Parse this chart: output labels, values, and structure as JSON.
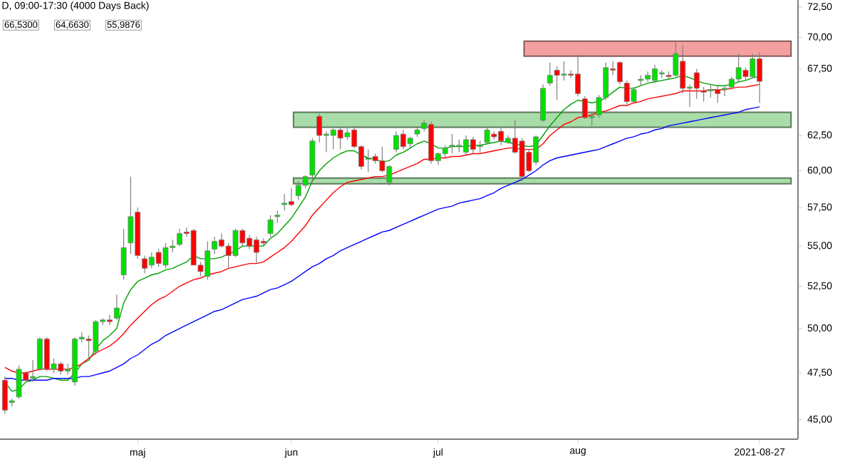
{
  "chart_data": {
    "type": "candlestick",
    "title": "D, 09:00-17:30 (4000 Days Back)",
    "categories": [
      null,
      null,
      null,
      null,
      null,
      null,
      null,
      null,
      null,
      null,
      null,
      null,
      null,
      null,
      null,
      null,
      null,
      null,
      null,
      "maj",
      null,
      null,
      null,
      null,
      null,
      null,
      null,
      null,
      null,
      null,
      null,
      null,
      null,
      null,
      null,
      null,
      null,
      null,
      null,
      null,
      null,
      "jun",
      null,
      null,
      null,
      null,
      null,
      null,
      null,
      null,
      null,
      null,
      null,
      null,
      null,
      null,
      null,
      null,
      null,
      null,
      null,
      null,
      "jul",
      null,
      null,
      null,
      null,
      null,
      null,
      null,
      null,
      null,
      null,
      null,
      null,
      null,
      null,
      null,
      null,
      null,
      null,
      null,
      "aug",
      null,
      null,
      null,
      null,
      null,
      null,
      null,
      null,
      null,
      null,
      null,
      null,
      null,
      null,
      null,
      null,
      null,
      null,
      null,
      null,
      null,
      null,
      null,
      null,
      null,
      "2021-08-27"
    ],
    "ohlc": [
      [
        47.1,
        47.3,
        45.3,
        45.5
      ],
      [
        45.9,
        46.1,
        45.7,
        46.0
      ],
      [
        46.2,
        47.9,
        46.1,
        47.7
      ],
      [
        47.5,
        47.6,
        47.0,
        47.1
      ],
      [
        47.2,
        48.2,
        47.0,
        47.3
      ],
      [
        47.7,
        49.5,
        47.6,
        49.4
      ],
      [
        49.4,
        49.5,
        47.6,
        47.7
      ],
      [
        47.7,
        48.3,
        47.5,
        48.0
      ],
      [
        48.0,
        48.1,
        47.4,
        47.6
      ],
      [
        47.6,
        48.0,
        47.4,
        47.7
      ],
      [
        47.0,
        49.5,
        46.8,
        49.4
      ],
      [
        49.4,
        49.8,
        49.2,
        49.5
      ],
      [
        49.4,
        49.6,
        48.3,
        49.3
      ],
      [
        48.7,
        50.5,
        48.5,
        50.4
      ],
      [
        50.4,
        50.6,
        50.2,
        50.5
      ],
      [
        50.5,
        50.8,
        50.2,
        50.4
      ],
      [
        50.6,
        52.0,
        50.5,
        51.2
      ],
      [
        53.2,
        56.1,
        52.9,
        54.9
      ],
      [
        55.2,
        59.6,
        54.5,
        56.9
      ],
      [
        57.2,
        57.5,
        54.2,
        54.4
      ],
      [
        54.2,
        54.4,
        53.3,
        53.6
      ],
      [
        53.8,
        54.6,
        53.6,
        54.3
      ],
      [
        54.6,
        54.8,
        53.7,
        53.9
      ],
      [
        53.8,
        55.2,
        53.6,
        54.9
      ],
      [
        54.9,
        55.4,
        54.6,
        55.0
      ],
      [
        55.1,
        56.1,
        55.0,
        55.8
      ],
      [
        55.9,
        56.2,
        55.6,
        55.8
      ],
      [
        56.0,
        56.1,
        53.8,
        53.8
      ],
      [
        53.8,
        54.0,
        53.1,
        53.4
      ],
      [
        53.1,
        55.3,
        52.9,
        54.7
      ],
      [
        54.8,
        55.6,
        54.5,
        55.3
      ],
      [
        55.4,
        55.8,
        54.9,
        55.0
      ],
      [
        55.0,
        55.2,
        53.6,
        54.4
      ],
      [
        54.4,
        56.1,
        54.3,
        56.0
      ],
      [
        56.0,
        56.1,
        55.0,
        55.2
      ],
      [
        55.5,
        55.7,
        54.8,
        55.0
      ],
      [
        55.4,
        55.6,
        53.9,
        54.6
      ],
      [
        55.3,
        55.5,
        55.0,
        55.2
      ],
      [
        55.8,
        57.0,
        55.6,
        56.7
      ],
      [
        56.9,
        57.3,
        56.5,
        57.0
      ],
      [
        57.7,
        58.4,
        57.3,
        57.8
      ],
      [
        57.9,
        58.8,
        57.6,
        57.7
      ],
      [
        58.3,
        59.3,
        58.0,
        59.0
      ],
      [
        59.0,
        59.7,
        58.8,
        59.6
      ],
      [
        59.7,
        62.3,
        59.3,
        62.1
      ],
      [
        63.9,
        64.1,
        62.0,
        62.5
      ],
      [
        62.5,
        62.8,
        61.3,
        62.6
      ],
      [
        62.5,
        63.0,
        61.5,
        62.9
      ],
      [
        62.9,
        63.1,
        61.5,
        62.3
      ],
      [
        62.4,
        63.0,
        62.2,
        62.7
      ],
      [
        62.9,
        63.2,
        61.6,
        61.7
      ],
      [
        61.7,
        61.8,
        60.1,
        60.3
      ],
      [
        60.8,
        61.5,
        59.9,
        60.9
      ],
      [
        61.0,
        61.2,
        60.5,
        60.7
      ],
      [
        60.7,
        61.7,
        59.9,
        60.0
      ],
      [
        59.2,
        60.4,
        59.0,
        60.3
      ],
      [
        61.5,
        62.8,
        61.3,
        62.5
      ],
      [
        62.6,
        62.9,
        61.5,
        61.7
      ],
      [
        61.9,
        62.4,
        61.6,
        62.3
      ],
      [
        62.6,
        63.1,
        62.4,
        62.9
      ],
      [
        63.0,
        63.6,
        62.8,
        63.4
      ],
      [
        63.3,
        63.5,
        60.5,
        60.7
      ],
      [
        60.7,
        61.3,
        60.4,
        61.2
      ],
      [
        61.2,
        61.8,
        60.9,
        61.6
      ],
      [
        61.7,
        62.6,
        61.2,
        61.8
      ],
      [
        61.7,
        62.2,
        61.3,
        61.8
      ],
      [
        61.3,
        62.5,
        61.1,
        62.2
      ],
      [
        62.2,
        62.4,
        61.2,
        61.5
      ],
      [
        61.7,
        62.1,
        61.2,
        61.8
      ],
      [
        62.0,
        63.1,
        61.9,
        62.9
      ],
      [
        62.6,
        62.8,
        62.2,
        62.4
      ],
      [
        62.8,
        63.0,
        61.8,
        62.1
      ],
      [
        62.0,
        62.5,
        61.9,
        62.3
      ],
      [
        62.3,
        63.6,
        61.2,
        61.3
      ],
      [
        62.1,
        62.3,
        59.3,
        59.6
      ],
      [
        61.3,
        61.5,
        59.9,
        60.0
      ],
      [
        60.6,
        62.5,
        60.4,
        62.4
      ],
      [
        63.6,
        66.3,
        63.5,
        66.0
      ],
      [
        66.4,
        68.0,
        66.2,
        67.0
      ],
      [
        67.4,
        67.7,
        65.1,
        67.0
      ],
      [
        67.0,
        68.1,
        66.6,
        67.1
      ],
      [
        67.1,
        67.4,
        66.8,
        67.0
      ],
      [
        67.1,
        68.6,
        65.4,
        65.6
      ],
      [
        65.2,
        65.4,
        63.7,
        63.8
      ],
      [
        63.8,
        64.2,
        63.2,
        63.9
      ],
      [
        64.0,
        65.5,
        63.8,
        65.3
      ],
      [
        65.3,
        68.0,
        65.1,
        67.6
      ],
      [
        67.5,
        68.1,
        67.0,
        67.4
      ],
      [
        68.0,
        68.1,
        66.3,
        66.5
      ],
      [
        66.4,
        66.6,
        64.8,
        65.0
      ],
      [
        65.0,
        66.1,
        64.9,
        65.9
      ],
      [
        66.6,
        67.0,
        66.2,
        66.7
      ],
      [
        66.7,
        67.3,
        66.5,
        67.0
      ],
      [
        66.6,
        67.8,
        66.4,
        67.5
      ],
      [
        67.1,
        67.4,
        66.8,
        67.2
      ],
      [
        67.0,
        67.3,
        66.7,
        66.9
      ],
      [
        67.0,
        69.7,
        66.9,
        68.7
      ],
      [
        68.1,
        69.4,
        65.6,
        66.0
      ],
      [
        66.0,
        66.3,
        64.6,
        66.1
      ],
      [
        67.2,
        67.5,
        65.2,
        66.0
      ],
      [
        65.8,
        66.1,
        65.0,
        65.7
      ],
      [
        65.8,
        66.3,
        65.3,
        65.9
      ],
      [
        65.9,
        66.2,
        64.9,
        65.6
      ],
      [
        65.9,
        66.2,
        65.4,
        66.0
      ],
      [
        66.1,
        66.9,
        65.9,
        66.7
      ],
      [
        66.7,
        68.7,
        66.5,
        67.6
      ],
      [
        67.4,
        67.6,
        66.6,
        66.9
      ],
      [
        66.9,
        68.7,
        66.8,
        68.3
      ],
      [
        68.3,
        68.8,
        64.9,
        66.53
      ]
    ],
    "colors": [
      "#ff0000",
      "#00e000",
      "#00e000",
      "#ff0000",
      "#00e000",
      "#00e000",
      "#ff0000",
      "#00e000",
      "#ff0000",
      "#00e000",
      "#00e000",
      "#00e000",
      "#ff0000",
      "#00e000",
      "#00e000",
      "#ff0000",
      "#00e000",
      "#00e000",
      "#00e000",
      "#ff0000",
      "#ff0000",
      "#00e000",
      "#ff0000",
      "#00e000",
      "#00e000",
      "#00e000",
      "#ff0000",
      "#ff0000",
      "#ff0000",
      "#00e000",
      "#00e000",
      "#ff0000",
      "#ff0000",
      "#00e000",
      "#ff0000",
      "#ff0000",
      "#ff0000",
      "#ff0000",
      "#00e000",
      "#00e000",
      "#00e000",
      "#ff0000",
      "#00e000",
      "#00e000",
      "#00e000",
      "#ff0000",
      "#00e000",
      "#00e000",
      "#ff0000",
      "#00e000",
      "#ff0000",
      "#ff0000",
      "#00e000",
      "#ff0000",
      "#ff0000",
      "#00e000",
      "#00e000",
      "#ff0000",
      "#00e000",
      "#00e000",
      "#00e000",
      "#ff0000",
      "#00e000",
      "#00e000",
      "#00e000",
      "#00e000",
      "#00e000",
      "#ff0000",
      "#00e000",
      "#00e000",
      "#ff0000",
      "#ff0000",
      "#00e000",
      "#ff0000",
      "#ff0000",
      "#ff0000",
      "#00e000",
      "#00e000",
      "#00e000",
      "#ff0000",
      "#00e000",
      "#ff0000",
      "#ff0000",
      "#ff0000",
      "#00e000",
      "#00e000",
      "#00e000",
      "#ff0000",
      "#ff0000",
      "#ff0000",
      "#00e000",
      "#00e000",
      "#00e000",
      "#00e000",
      "#00e000",
      "#ff0000",
      "#00e000",
      "#ff0000",
      "#00e000",
      "#ff0000",
      "#ff0000",
      "#00e000",
      "#ff0000",
      "#00e000",
      "#00e000",
      "#00e000",
      "#ff0000",
      "#00e000",
      "#ff0000"
    ],
    "series": [
      {
        "type": "line",
        "color": "#00a000",
        "values": [
          47.0,
          46.5,
          46.6,
          47.0,
          47.1,
          47.3,
          47.3,
          47.2,
          47.1,
          47.1,
          47.5,
          48.0,
          48.2,
          48.8,
          49.3,
          49.6,
          50.0,
          51.5,
          52.3,
          52.8,
          53.0,
          53.2,
          53.3,
          53.5,
          53.6,
          53.8,
          54.0,
          54.4,
          54.2,
          54.2,
          54.2,
          54.3,
          54.5,
          54.7,
          55.0,
          55.0,
          55.0,
          55.0,
          55.5,
          55.8,
          56.3,
          56.8,
          57.5,
          58.2,
          59.3,
          60.0,
          60.5,
          60.9,
          61.2,
          61.4,
          61.4,
          61.1,
          60.9,
          60.8,
          60.6,
          60.7,
          61.1,
          61.3,
          61.6,
          61.9,
          62.1,
          61.9,
          61.6,
          61.6,
          61.7,
          61.7,
          61.7,
          61.8,
          61.8,
          61.9,
          62.0,
          62.1,
          62.0,
          61.9,
          61.8,
          61.7,
          61.8,
          62.5,
          63.2,
          63.8,
          64.4,
          64.8,
          65.1,
          65.0,
          64.9,
          65.0,
          65.3,
          65.7,
          66.1,
          66.0,
          66.0,
          66.2,
          66.4,
          66.5,
          66.6,
          66.7,
          66.8,
          67.0,
          66.8,
          66.6,
          66.4,
          66.3,
          66.2,
          66.2,
          66.3,
          66.5,
          66.6,
          66.8,
          66.9
        ]
      },
      {
        "type": "line",
        "color": "#ff0000",
        "values": [
          47.8,
          47.6,
          47.5,
          47.5,
          47.6,
          47.7,
          47.7,
          47.7,
          47.7,
          47.7,
          47.8,
          48.0,
          48.3,
          48.6,
          48.8,
          49.0,
          49.3,
          49.7,
          50.2,
          50.6,
          51.0,
          51.4,
          51.7,
          51.9,
          52.2,
          52.5,
          52.7,
          52.9,
          53.0,
          53.2,
          53.3,
          53.4,
          53.6,
          53.7,
          53.8,
          53.9,
          53.9,
          54.0,
          54.3,
          54.6,
          54.9,
          55.3,
          55.8,
          56.3,
          57.0,
          57.5,
          58.0,
          58.5,
          58.9,
          59.2,
          59.3,
          59.4,
          59.5,
          59.6,
          59.6,
          59.7,
          59.9,
          60.1,
          60.3,
          60.5,
          60.8,
          60.8,
          60.9,
          60.9,
          61.0,
          61.0,
          61.1,
          61.2,
          61.2,
          61.3,
          61.4,
          61.5,
          61.6,
          61.6,
          61.5,
          61.5,
          61.5,
          61.9,
          62.5,
          62.9,
          63.3,
          63.5,
          63.8,
          63.9,
          64.0,
          64.2,
          64.3,
          64.5,
          64.7,
          64.7,
          64.9,
          65.0,
          65.2,
          65.3,
          65.4,
          65.5,
          65.6,
          65.8,
          65.8,
          65.8,
          65.8,
          65.9,
          65.9,
          65.9,
          66.0,
          66.1,
          66.1,
          66.2,
          66.3
        ]
      },
      {
        "type": "line",
        "color": "#0000ff",
        "values": [
          47.2,
          47.2,
          47.1,
          47.1,
          47.1,
          47.1,
          47.1,
          47.2,
          47.2,
          47.2,
          47.2,
          47.3,
          47.3,
          47.4,
          47.5,
          47.6,
          47.8,
          48.0,
          48.3,
          48.5,
          48.8,
          49.1,
          49.3,
          49.6,
          49.8,
          50.0,
          50.2,
          50.4,
          50.6,
          50.8,
          51.0,
          51.1,
          51.3,
          51.5,
          51.7,
          51.8,
          51.9,
          52.1,
          52.3,
          52.4,
          52.6,
          52.8,
          53.1,
          53.4,
          53.7,
          53.9,
          54.2,
          54.4,
          54.7,
          54.9,
          55.1,
          55.3,
          55.5,
          55.7,
          55.9,
          56.0,
          56.2,
          56.4,
          56.6,
          56.8,
          57.0,
          57.2,
          57.4,
          57.5,
          57.6,
          57.8,
          57.9,
          58.0,
          58.1,
          58.3,
          58.5,
          58.8,
          59.0,
          59.2,
          59.4,
          59.7,
          60.0,
          60.4,
          60.7,
          60.9,
          61.0,
          61.1,
          61.2,
          61.3,
          61.4,
          61.5,
          61.7,
          61.9,
          62.1,
          62.3,
          62.4,
          62.6,
          62.7,
          62.9,
          63.0,
          63.2,
          63.3,
          63.4,
          63.5,
          63.6,
          63.7,
          63.8,
          63.9,
          64.0,
          64.1,
          64.2,
          64.4,
          64.5,
          64.6
        ]
      }
    ],
    "bands": [
      {
        "axis": "y",
        "from": 68.5,
        "to": 69.7,
        "color": "#f4a0a0"
      },
      {
        "axis": "y",
        "from": 63.1,
        "to": 64.2,
        "color": "#a8dca8"
      },
      {
        "axis": "y",
        "from": 59.1,
        "to": 59.5,
        "color": "#a8dca8"
      }
    ],
    "annotations": [
      "66,5300",
      "64,6630",
      "55,9876"
    ],
    "log": true,
    "ylim": [
      44.0,
      73.1
    ],
    "yticks": [
      {
        "value": 45,
        "label": "45,00"
      },
      {
        "value": 47.5,
        "label": "47,50"
      },
      {
        "value": 50,
        "label": "50,00"
      },
      {
        "value": 52.5,
        "label": "52,50"
      },
      {
        "value": 55,
        "label": "55,00"
      },
      {
        "value": 57.5,
        "label": "57,50"
      },
      {
        "value": 60,
        "label": "60,00"
      },
      {
        "value": 62.5,
        "label": "62,50"
      },
      {
        "value": 67.5,
        "label": "67,50"
      },
      {
        "value": 70,
        "label": "70,00"
      },
      {
        "value": 72.5,
        "label": "72,50"
      }
    ]
  }
}
